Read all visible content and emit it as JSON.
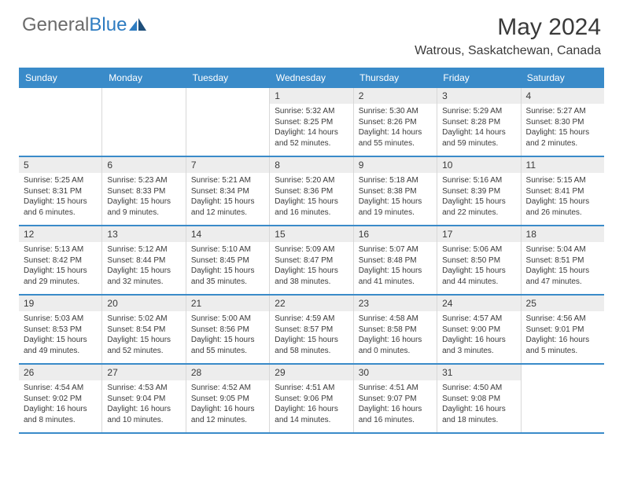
{
  "logo": {
    "text1": "General",
    "text2": "Blue"
  },
  "title": "May 2024",
  "location": "Watrous, Saskatchewan, Canada",
  "colors": {
    "header_bg": "#3a8bc9",
    "header_text": "#ffffff",
    "daynum_bg": "#ededed",
    "row_border": "#3a8bc9",
    "body_text": "#3a3a3a",
    "logo_gray": "#6b6b6b",
    "logo_blue": "#2e7cc1"
  },
  "typography": {
    "title_fontsize": 30,
    "location_fontsize": 16,
    "dayname_fontsize": 12,
    "daynum_fontsize": 12,
    "cell_fontsize": 10
  },
  "daynames": [
    "Sunday",
    "Monday",
    "Tuesday",
    "Wednesday",
    "Thursday",
    "Friday",
    "Saturday"
  ],
  "weeks": [
    [
      {
        "day": "",
        "empty": true
      },
      {
        "day": "",
        "empty": true
      },
      {
        "day": "",
        "empty": true
      },
      {
        "day": "1",
        "sunrise": "Sunrise: 5:32 AM",
        "sunset": "Sunset: 8:25 PM",
        "daylight": "Daylight: 14 hours and 52 minutes."
      },
      {
        "day": "2",
        "sunrise": "Sunrise: 5:30 AM",
        "sunset": "Sunset: 8:26 PM",
        "daylight": "Daylight: 14 hours and 55 minutes."
      },
      {
        "day": "3",
        "sunrise": "Sunrise: 5:29 AM",
        "sunset": "Sunset: 8:28 PM",
        "daylight": "Daylight: 14 hours and 59 minutes."
      },
      {
        "day": "4",
        "sunrise": "Sunrise: 5:27 AM",
        "sunset": "Sunset: 8:30 PM",
        "daylight": "Daylight: 15 hours and 2 minutes."
      }
    ],
    [
      {
        "day": "5",
        "sunrise": "Sunrise: 5:25 AM",
        "sunset": "Sunset: 8:31 PM",
        "daylight": "Daylight: 15 hours and 6 minutes."
      },
      {
        "day": "6",
        "sunrise": "Sunrise: 5:23 AM",
        "sunset": "Sunset: 8:33 PM",
        "daylight": "Daylight: 15 hours and 9 minutes."
      },
      {
        "day": "7",
        "sunrise": "Sunrise: 5:21 AM",
        "sunset": "Sunset: 8:34 PM",
        "daylight": "Daylight: 15 hours and 12 minutes."
      },
      {
        "day": "8",
        "sunrise": "Sunrise: 5:20 AM",
        "sunset": "Sunset: 8:36 PM",
        "daylight": "Daylight: 15 hours and 16 minutes."
      },
      {
        "day": "9",
        "sunrise": "Sunrise: 5:18 AM",
        "sunset": "Sunset: 8:38 PM",
        "daylight": "Daylight: 15 hours and 19 minutes."
      },
      {
        "day": "10",
        "sunrise": "Sunrise: 5:16 AM",
        "sunset": "Sunset: 8:39 PM",
        "daylight": "Daylight: 15 hours and 22 minutes."
      },
      {
        "day": "11",
        "sunrise": "Sunrise: 5:15 AM",
        "sunset": "Sunset: 8:41 PM",
        "daylight": "Daylight: 15 hours and 26 minutes."
      }
    ],
    [
      {
        "day": "12",
        "sunrise": "Sunrise: 5:13 AM",
        "sunset": "Sunset: 8:42 PM",
        "daylight": "Daylight: 15 hours and 29 minutes."
      },
      {
        "day": "13",
        "sunrise": "Sunrise: 5:12 AM",
        "sunset": "Sunset: 8:44 PM",
        "daylight": "Daylight: 15 hours and 32 minutes."
      },
      {
        "day": "14",
        "sunrise": "Sunrise: 5:10 AM",
        "sunset": "Sunset: 8:45 PM",
        "daylight": "Daylight: 15 hours and 35 minutes."
      },
      {
        "day": "15",
        "sunrise": "Sunrise: 5:09 AM",
        "sunset": "Sunset: 8:47 PM",
        "daylight": "Daylight: 15 hours and 38 minutes."
      },
      {
        "day": "16",
        "sunrise": "Sunrise: 5:07 AM",
        "sunset": "Sunset: 8:48 PM",
        "daylight": "Daylight: 15 hours and 41 minutes."
      },
      {
        "day": "17",
        "sunrise": "Sunrise: 5:06 AM",
        "sunset": "Sunset: 8:50 PM",
        "daylight": "Daylight: 15 hours and 44 minutes."
      },
      {
        "day": "18",
        "sunrise": "Sunrise: 5:04 AM",
        "sunset": "Sunset: 8:51 PM",
        "daylight": "Daylight: 15 hours and 47 minutes."
      }
    ],
    [
      {
        "day": "19",
        "sunrise": "Sunrise: 5:03 AM",
        "sunset": "Sunset: 8:53 PM",
        "daylight": "Daylight: 15 hours and 49 minutes."
      },
      {
        "day": "20",
        "sunrise": "Sunrise: 5:02 AM",
        "sunset": "Sunset: 8:54 PM",
        "daylight": "Daylight: 15 hours and 52 minutes."
      },
      {
        "day": "21",
        "sunrise": "Sunrise: 5:00 AM",
        "sunset": "Sunset: 8:56 PM",
        "daylight": "Daylight: 15 hours and 55 minutes."
      },
      {
        "day": "22",
        "sunrise": "Sunrise: 4:59 AM",
        "sunset": "Sunset: 8:57 PM",
        "daylight": "Daylight: 15 hours and 58 minutes."
      },
      {
        "day": "23",
        "sunrise": "Sunrise: 4:58 AM",
        "sunset": "Sunset: 8:58 PM",
        "daylight": "Daylight: 16 hours and 0 minutes."
      },
      {
        "day": "24",
        "sunrise": "Sunrise: 4:57 AM",
        "sunset": "Sunset: 9:00 PM",
        "daylight": "Daylight: 16 hours and 3 minutes."
      },
      {
        "day": "25",
        "sunrise": "Sunrise: 4:56 AM",
        "sunset": "Sunset: 9:01 PM",
        "daylight": "Daylight: 16 hours and 5 minutes."
      }
    ],
    [
      {
        "day": "26",
        "sunrise": "Sunrise: 4:54 AM",
        "sunset": "Sunset: 9:02 PM",
        "daylight": "Daylight: 16 hours and 8 minutes."
      },
      {
        "day": "27",
        "sunrise": "Sunrise: 4:53 AM",
        "sunset": "Sunset: 9:04 PM",
        "daylight": "Daylight: 16 hours and 10 minutes."
      },
      {
        "day": "28",
        "sunrise": "Sunrise: 4:52 AM",
        "sunset": "Sunset: 9:05 PM",
        "daylight": "Daylight: 16 hours and 12 minutes."
      },
      {
        "day": "29",
        "sunrise": "Sunrise: 4:51 AM",
        "sunset": "Sunset: 9:06 PM",
        "daylight": "Daylight: 16 hours and 14 minutes."
      },
      {
        "day": "30",
        "sunrise": "Sunrise: 4:51 AM",
        "sunset": "Sunset: 9:07 PM",
        "daylight": "Daylight: 16 hours and 16 minutes."
      },
      {
        "day": "31",
        "sunrise": "Sunrise: 4:50 AM",
        "sunset": "Sunset: 9:08 PM",
        "daylight": "Daylight: 16 hours and 18 minutes."
      },
      {
        "day": "",
        "empty": true
      }
    ]
  ]
}
